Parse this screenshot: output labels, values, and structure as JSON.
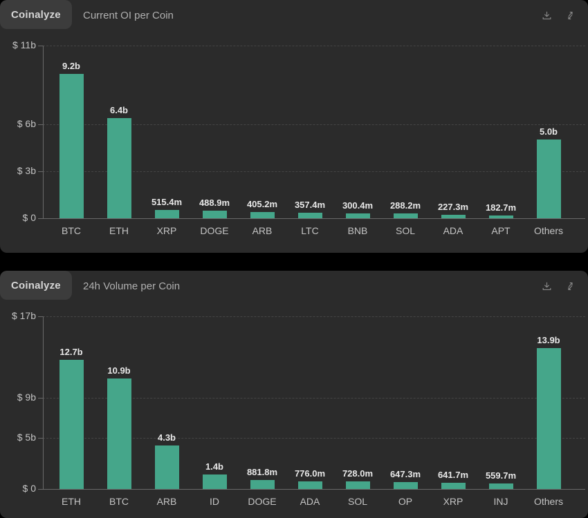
{
  "colors": {
    "page_bg": "#000000",
    "panel_bg": "#2b2b2b",
    "bar": "#45a68a",
    "grid": "#454545",
    "axis": "#6a6a6a"
  },
  "panels": [
    {
      "brand": "Coinalyze",
      "title": "Current OI per Coin",
      "toolbar_icons": [
        "download-icon",
        "compare-icon"
      ]
    },
    {
      "brand": "Coinalyze",
      "title": "24h Volume per Coin",
      "toolbar_icons": [
        "download-icon",
        "compare-icon"
      ]
    }
  ],
  "chart_data": [
    {
      "type": "bar",
      "title": "Current OI per Coin",
      "categories": [
        "BTC",
        "ETH",
        "XRP",
        "DOGE",
        "ARB",
        "LTC",
        "BNB",
        "SOL",
        "ADA",
        "APT",
        "Others"
      ],
      "values_billions": [
        9.2,
        6.4,
        0.5154,
        0.4889,
        0.4052,
        0.3574,
        0.3004,
        0.2882,
        0.2273,
        0.1827,
        5.0
      ],
      "value_labels": [
        "9.2b",
        "6.4b",
        "515.4m",
        "488.9m",
        "405.2m",
        "357.4m",
        "300.4m",
        "288.2m",
        "227.3m",
        "182.7m",
        "5.0b"
      ],
      "yticks": [
        {
          "label": "$ 0",
          "value": 0
        },
        {
          "label": "$ 3b",
          "value": 3
        },
        {
          "label": "$ 6b",
          "value": 6
        },
        {
          "label": "$ 11b",
          "value": 11
        }
      ],
      "ylim": [
        0,
        17
      ],
      "ymax": 11,
      "xlabel": "",
      "ylabel": "",
      "legend": false,
      "grid": "horizontal-dashed",
      "bar_color": "#45a68a"
    },
    {
      "type": "bar",
      "title": "24h Volume per Coin",
      "categories": [
        "ETH",
        "BTC",
        "ARB",
        "ID",
        "DOGE",
        "ADA",
        "SOL",
        "OP",
        "XRP",
        "INJ",
        "Others"
      ],
      "values_billions": [
        12.7,
        10.9,
        4.3,
        1.4,
        0.8818,
        0.776,
        0.728,
        0.6473,
        0.6417,
        0.5597,
        13.9
      ],
      "value_labels": [
        "12.7b",
        "10.9b",
        "4.3b",
        "1.4b",
        "881.8m",
        "776.0m",
        "728.0m",
        "647.3m",
        "641.7m",
        "559.7m",
        "13.9b"
      ],
      "yticks": [
        {
          "label": "$ 0",
          "value": 0
        },
        {
          "label": "$ 5b",
          "value": 5
        },
        {
          "label": "$ 9b",
          "value": 9
        },
        {
          "label": "$ 17b",
          "value": 17
        }
      ],
      "ylim": [
        0,
        17
      ],
      "ymax": 17,
      "xlabel": "",
      "ylabel": "",
      "legend": false,
      "grid": "horizontal-dashed",
      "bar_color": "#45a68a"
    }
  ]
}
